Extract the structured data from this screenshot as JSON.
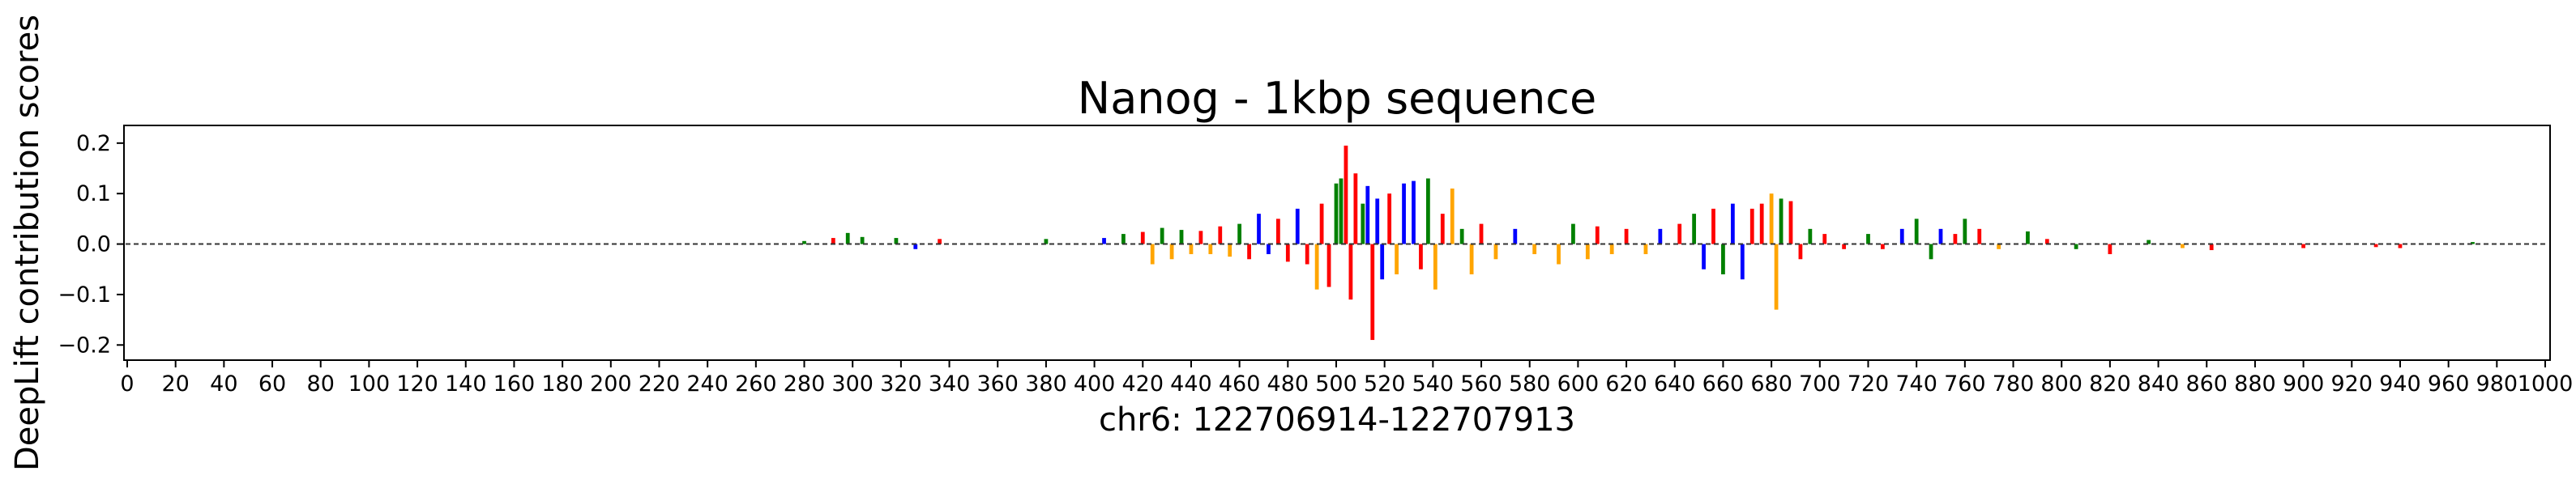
{
  "chart_data": {
    "type": "bar",
    "title": "Nanog - 1kbp sequence",
    "xlabel": "chr6: 122706914-122707913",
    "ylabel": "DeepLift contribution scores",
    "xlim": [
      0,
      1000
    ],
    "ylim": [
      -0.23,
      0.235
    ],
    "xticks": [
      0,
      20,
      40,
      60,
      80,
      100,
      120,
      140,
      160,
      180,
      200,
      220,
      240,
      260,
      280,
      300,
      320,
      340,
      360,
      380,
      400,
      420,
      440,
      460,
      480,
      500,
      520,
      540,
      560,
      580,
      600,
      620,
      640,
      660,
      680,
      700,
      720,
      740,
      760,
      780,
      800,
      820,
      840,
      860,
      880,
      900,
      920,
      940,
      960,
      980,
      1000
    ],
    "yticks": [
      -0.2,
      -0.1,
      0.0,
      0.1,
      0.2
    ],
    "ytick_labels": [
      "−0.2",
      "−0.1",
      "0.0",
      "0.1",
      "0.2"
    ],
    "bases": [
      "A",
      "C",
      "G",
      "T"
    ],
    "base_colors": {
      "A": "#008000",
      "C": "#0000ff",
      "G": "#ffa500",
      "T": "#ff0000"
    },
    "grid": false,
    "legend": "none",
    "series": [
      {
        "x": 280,
        "value": 0.006,
        "base": "A"
      },
      {
        "x": 292,
        "value": 0.012,
        "base": "T"
      },
      {
        "x": 298,
        "value": 0.022,
        "base": "A"
      },
      {
        "x": 304,
        "value": 0.014,
        "base": "A"
      },
      {
        "x": 318,
        "value": 0.012,
        "base": "A"
      },
      {
        "x": 326,
        "value": -0.01,
        "base": "C"
      },
      {
        "x": 336,
        "value": 0.01,
        "base": "T"
      },
      {
        "x": 380,
        "value": 0.01,
        "base": "A"
      },
      {
        "x": 404,
        "value": 0.012,
        "base": "C"
      },
      {
        "x": 412,
        "value": 0.02,
        "base": "A"
      },
      {
        "x": 420,
        "value": 0.024,
        "base": "T"
      },
      {
        "x": 424,
        "value": -0.04,
        "base": "G"
      },
      {
        "x": 428,
        "value": 0.032,
        "base": "A"
      },
      {
        "x": 432,
        "value": -0.03,
        "base": "G"
      },
      {
        "x": 436,
        "value": 0.028,
        "base": "A"
      },
      {
        "x": 440,
        "value": -0.02,
        "base": "G"
      },
      {
        "x": 444,
        "value": 0.026,
        "base": "T"
      },
      {
        "x": 448,
        "value": -0.02,
        "base": "G"
      },
      {
        "x": 452,
        "value": 0.035,
        "base": "T"
      },
      {
        "x": 456,
        "value": -0.025,
        "base": "G"
      },
      {
        "x": 460,
        "value": 0.04,
        "base": "A"
      },
      {
        "x": 464,
        "value": -0.03,
        "base": "T"
      },
      {
        "x": 468,
        "value": 0.06,
        "base": "C"
      },
      {
        "x": 472,
        "value": -0.02,
        "base": "C"
      },
      {
        "x": 476,
        "value": 0.05,
        "base": "T"
      },
      {
        "x": 480,
        "value": -0.035,
        "base": "T"
      },
      {
        "x": 484,
        "value": 0.07,
        "base": "C"
      },
      {
        "x": 488,
        "value": -0.04,
        "base": "T"
      },
      {
        "x": 492,
        "value": -0.09,
        "base": "G"
      },
      {
        "x": 494,
        "value": 0.08,
        "base": "T"
      },
      {
        "x": 497,
        "value": -0.085,
        "base": "T"
      },
      {
        "x": 500,
        "value": 0.12,
        "base": "A"
      },
      {
        "x": 502,
        "value": 0.13,
        "base": "A"
      },
      {
        "x": 504,
        "value": 0.195,
        "base": "T"
      },
      {
        "x": 506,
        "value": -0.11,
        "base": "T"
      },
      {
        "x": 508,
        "value": 0.14,
        "base": "T"
      },
      {
        "x": 511,
        "value": 0.08,
        "base": "A"
      },
      {
        "x": 513,
        "value": 0.115,
        "base": "C"
      },
      {
        "x": 515,
        "value": -0.19,
        "base": "T"
      },
      {
        "x": 517,
        "value": 0.09,
        "base": "C"
      },
      {
        "x": 519,
        "value": -0.07,
        "base": "C"
      },
      {
        "x": 522,
        "value": 0.1,
        "base": "T"
      },
      {
        "x": 525,
        "value": -0.06,
        "base": "G"
      },
      {
        "x": 528,
        "value": 0.12,
        "base": "C"
      },
      {
        "x": 532,
        "value": 0.125,
        "base": "C"
      },
      {
        "x": 535,
        "value": -0.05,
        "base": "T"
      },
      {
        "x": 538,
        "value": 0.13,
        "base": "A"
      },
      {
        "x": 541,
        "value": -0.09,
        "base": "G"
      },
      {
        "x": 544,
        "value": 0.06,
        "base": "T"
      },
      {
        "x": 548,
        "value": 0.11,
        "base": "G"
      },
      {
        "x": 552,
        "value": 0.03,
        "base": "A"
      },
      {
        "x": 556,
        "value": -0.06,
        "base": "G"
      },
      {
        "x": 560,
        "value": 0.04,
        "base": "T"
      },
      {
        "x": 566,
        "value": -0.03,
        "base": "G"
      },
      {
        "x": 574,
        "value": 0.03,
        "base": "C"
      },
      {
        "x": 582,
        "value": -0.02,
        "base": "G"
      },
      {
        "x": 592,
        "value": -0.04,
        "base": "G"
      },
      {
        "x": 598,
        "value": 0.04,
        "base": "A"
      },
      {
        "x": 604,
        "value": -0.03,
        "base": "G"
      },
      {
        "x": 608,
        "value": 0.035,
        "base": "T"
      },
      {
        "x": 614,
        "value": -0.02,
        "base": "G"
      },
      {
        "x": 620,
        "value": 0.03,
        "base": "T"
      },
      {
        "x": 628,
        "value": -0.02,
        "base": "G"
      },
      {
        "x": 634,
        "value": 0.03,
        "base": "C"
      },
      {
        "x": 642,
        "value": 0.04,
        "base": "T"
      },
      {
        "x": 648,
        "value": 0.06,
        "base": "A"
      },
      {
        "x": 652,
        "value": -0.05,
        "base": "C"
      },
      {
        "x": 656,
        "value": 0.07,
        "base": "T"
      },
      {
        "x": 660,
        "value": -0.06,
        "base": "A"
      },
      {
        "x": 664,
        "value": 0.08,
        "base": "C"
      },
      {
        "x": 668,
        "value": -0.07,
        "base": "C"
      },
      {
        "x": 672,
        "value": 0.07,
        "base": "T"
      },
      {
        "x": 676,
        "value": 0.08,
        "base": "T"
      },
      {
        "x": 680,
        "value": 0.1,
        "base": "G"
      },
      {
        "x": 682,
        "value": -0.13,
        "base": "G"
      },
      {
        "x": 684,
        "value": 0.09,
        "base": "A"
      },
      {
        "x": 688,
        "value": 0.085,
        "base": "T"
      },
      {
        "x": 692,
        "value": -0.03,
        "base": "T"
      },
      {
        "x": 696,
        "value": 0.03,
        "base": "A"
      },
      {
        "x": 702,
        "value": 0.02,
        "base": "T"
      },
      {
        "x": 710,
        "value": -0.01,
        "base": "T"
      },
      {
        "x": 720,
        "value": 0.02,
        "base": "A"
      },
      {
        "x": 726,
        "value": -0.01,
        "base": "T"
      },
      {
        "x": 734,
        "value": 0.03,
        "base": "C"
      },
      {
        "x": 740,
        "value": 0.05,
        "base": "A"
      },
      {
        "x": 746,
        "value": -0.03,
        "base": "A"
      },
      {
        "x": 750,
        "value": 0.03,
        "base": "C"
      },
      {
        "x": 756,
        "value": 0.02,
        "base": "T"
      },
      {
        "x": 760,
        "value": 0.05,
        "base": "A"
      },
      {
        "x": 766,
        "value": 0.03,
        "base": "T"
      },
      {
        "x": 774,
        "value": -0.01,
        "base": "G"
      },
      {
        "x": 786,
        "value": 0.025,
        "base": "A"
      },
      {
        "x": 794,
        "value": 0.01,
        "base": "T"
      },
      {
        "x": 806,
        "value": -0.01,
        "base": "A"
      },
      {
        "x": 820,
        "value": -0.02,
        "base": "T"
      },
      {
        "x": 836,
        "value": 0.008,
        "base": "A"
      },
      {
        "x": 850,
        "value": -0.008,
        "base": "G"
      },
      {
        "x": 862,
        "value": -0.012,
        "base": "T"
      },
      {
        "x": 900,
        "value": -0.008,
        "base": "T"
      },
      {
        "x": 930,
        "value": -0.006,
        "base": "T"
      },
      {
        "x": 940,
        "value": -0.008,
        "base": "T"
      },
      {
        "x": 970,
        "value": 0.004,
        "base": "A"
      }
    ]
  }
}
